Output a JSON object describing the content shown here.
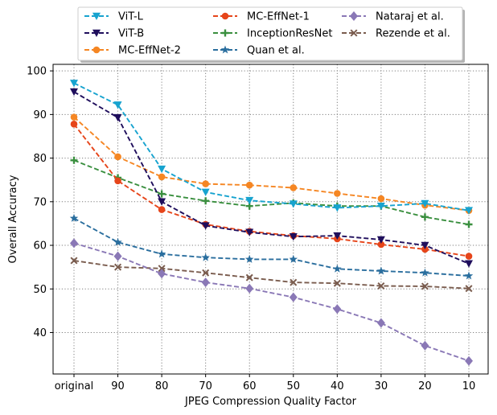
{
  "chart_data": {
    "type": "line",
    "title": "",
    "xlabel": "JPEG Compression Quality Factor",
    "ylabel": "Overall Accuracy",
    "categories": [
      "original",
      "90",
      "80",
      "70",
      "60",
      "50",
      "40",
      "30",
      "20",
      "10"
    ],
    "ylim": [
      30.5,
      101.5
    ],
    "yticks": [
      40,
      50,
      60,
      70,
      80,
      90,
      100
    ],
    "grid": true,
    "legend_position": "top-center",
    "legend_columns": 3,
    "series": [
      {
        "name": "ViT-L",
        "color": "#17a3cf",
        "marker": "triangle-down",
        "values": [
          97.2,
          92.2,
          77.5,
          72.2,
          70.3,
          69.5,
          68.6,
          69.0,
          69.6,
          68.0
        ]
      },
      {
        "name": "ViT-B",
        "color": "#1f0e5c",
        "marker": "triangle-down",
        "values": [
          95.2,
          89.3,
          70.0,
          64.5,
          63.0,
          62.0,
          62.2,
          61.3,
          60.0,
          55.8
        ]
      },
      {
        "name": "MC-EffNet-2",
        "color": "#f58623",
        "marker": "circle",
        "values": [
          89.4,
          80.3,
          75.7,
          74.1,
          73.8,
          73.2,
          71.9,
          70.7,
          69.2,
          68.0
        ]
      },
      {
        "name": "MC-EffNet-1",
        "color": "#e6451a",
        "marker": "circle",
        "values": [
          87.8,
          74.8,
          68.2,
          64.8,
          63.2,
          62.2,
          61.5,
          60.2,
          59.1,
          57.5
        ]
      },
      {
        "name": "InceptionResNet",
        "color": "#3a8f3f",
        "marker": "plus",
        "values": [
          79.5,
          75.5,
          71.8,
          70.2,
          69.0,
          69.7,
          69.0,
          69.0,
          66.5,
          64.8
        ]
      },
      {
        "name": "Quan et al.",
        "color": "#2a6e9e",
        "marker": "star",
        "values": [
          66.2,
          60.7,
          58.0,
          57.2,
          56.8,
          56.8,
          54.6,
          54.1,
          53.7,
          53.0
        ]
      },
      {
        "name": "Nataraj et al.",
        "color": "#8a78b6",
        "marker": "diamond",
        "values": [
          60.5,
          57.5,
          53.5,
          51.5,
          50.1,
          48.1,
          45.4,
          42.2,
          37.0,
          33.5
        ]
      },
      {
        "name": "Rezende et al.",
        "color": "#7a5c4e",
        "marker": "x",
        "values": [
          56.5,
          55.0,
          54.7,
          53.7,
          52.6,
          51.5,
          51.3,
          50.7,
          50.6,
          50.1
        ]
      }
    ]
  }
}
